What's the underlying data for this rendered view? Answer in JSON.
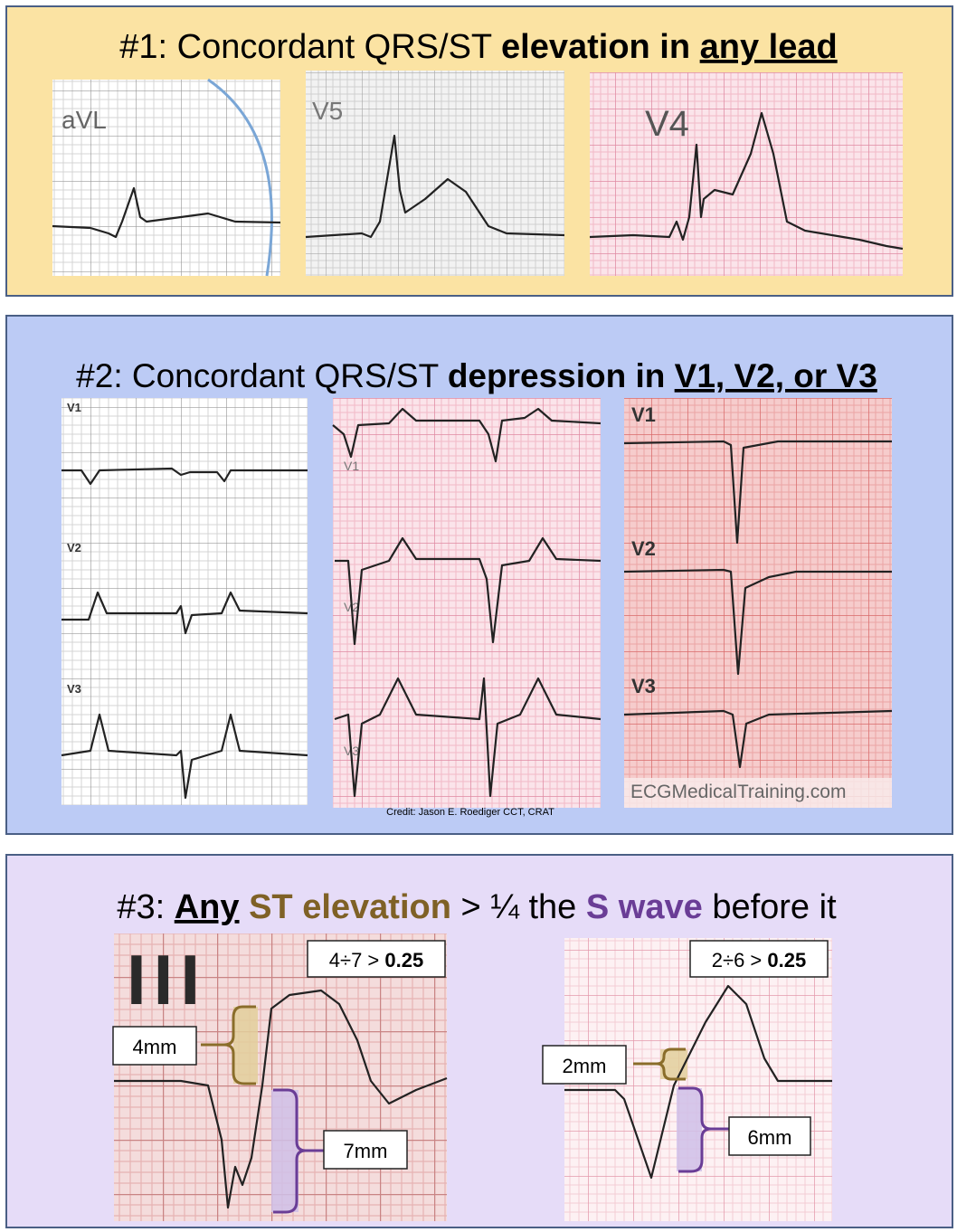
{
  "section1": {
    "title": [
      "#1: Concordant QRS/ST ",
      "elevation in ",
      "any lead"
    ],
    "leads": [
      "aVL",
      "V5",
      "V4"
    ]
  },
  "section2": {
    "title": [
      "#2: Concordant QRS/ST ",
      "depression in ",
      "V1, V2, or V3"
    ],
    "leads_left": [
      "V1",
      "V2",
      "V3"
    ],
    "leads_middle": [
      "V1",
      "V2",
      "V3"
    ],
    "leads_right": [
      "V1",
      "V2",
      "V3"
    ],
    "credit": "Credit: Jason E. Roediger CCT, CRAT",
    "watermark": "ECGMedicalTraining.com"
  },
  "section3": {
    "title": [
      "#3: ",
      "Any",
      " ST elevation",
      " > ¼ the ",
      "S wave",
      " before it"
    ],
    "examples": [
      {
        "lead": "III",
        "ratio": "4÷7 > ",
        "ratio_result": "0.25",
        "st_height": "4mm",
        "s_depth": "7mm"
      },
      {
        "ratio": "2÷6 > ",
        "ratio_result": "0.25",
        "st_height": "2mm",
        "s_depth": "6mm"
      }
    ]
  }
}
